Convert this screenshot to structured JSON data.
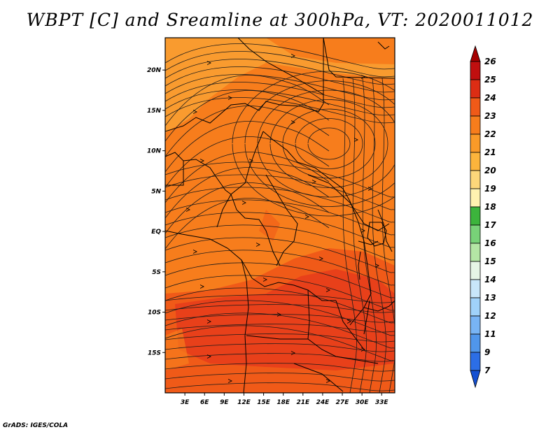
{
  "title": "WBPT [C] and Sreamline at 300hPa, VT: 2020011012",
  "footer": "GrADS: IGES/COLA",
  "map": {
    "lon_range": [
      0,
      35
    ],
    "lat_range": [
      -20,
      24
    ],
    "lat_ticks": [
      "20N",
      "15N",
      "10N",
      "5N",
      "EQ",
      "5S",
      "10S",
      "15S"
    ],
    "lon_ticks": [
      "3E",
      "6E",
      "9E",
      "12E",
      "15E",
      "18E",
      "21E",
      "24E",
      "27E",
      "30E",
      "33E"
    ],
    "field_colors": {
      "low": "#f77d1c",
      "mid": "#f05a18",
      "high": "#e8401a",
      "warm_band": "#f9a032"
    }
  },
  "colorbar": {
    "labels": [
      "26",
      "25",
      "24",
      "23",
      "22",
      "21",
      "20",
      "19",
      "18",
      "17",
      "16",
      "15",
      "14",
      "13",
      "12",
      "11",
      "9",
      "7"
    ],
    "colors": [
      "#a50000",
      "#c00f0f",
      "#dc2d14",
      "#f05a18",
      "#f77d1c",
      "#fa9a28",
      "#fcb43c",
      "#fdd77a",
      "#fff2b0",
      "#3cb43c",
      "#78d278",
      "#b4e6a5",
      "#e6f5e6",
      "#c8e6fa",
      "#a0d2fa",
      "#78b4f5",
      "#5096eb",
      "#2c6ee6",
      "#1450d2"
    ]
  }
}
